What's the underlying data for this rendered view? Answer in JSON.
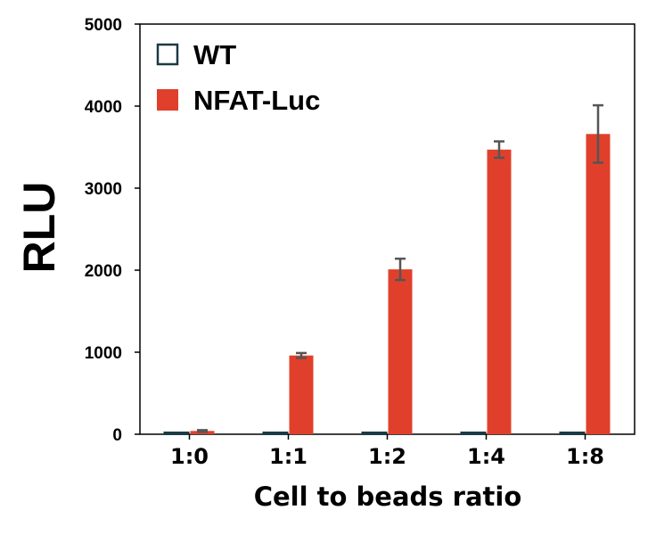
{
  "chart_data": {
    "type": "bar",
    "categories": [
      "1:0",
      "1:1",
      "1:2",
      "1:4",
      "1:8"
    ],
    "series": [
      {
        "name": "WT",
        "values": [
          10,
          10,
          10,
          10,
          10
        ],
        "errors": [
          0,
          0,
          0,
          0,
          0
        ]
      },
      {
        "name": "NFAT-Luc",
        "values": [
          40,
          960,
          2010,
          3470,
          3660
        ],
        "errors": [
          10,
          30,
          130,
          100,
          350
        ]
      }
    ],
    "title": "",
    "xlabel": "Cell to beads ratio",
    "ylabel": "RLU",
    "ylim": [
      0,
      5000
    ],
    "yticks": [
      0,
      1000,
      2000,
      3000,
      4000,
      5000
    ],
    "grid": false,
    "legend_position": "top-left",
    "colors": {
      "WT": "#ffffff",
      "WT_border": "#1a3a44",
      "NFAT-Luc": "#e0402b",
      "error_bar": "#555555"
    }
  }
}
